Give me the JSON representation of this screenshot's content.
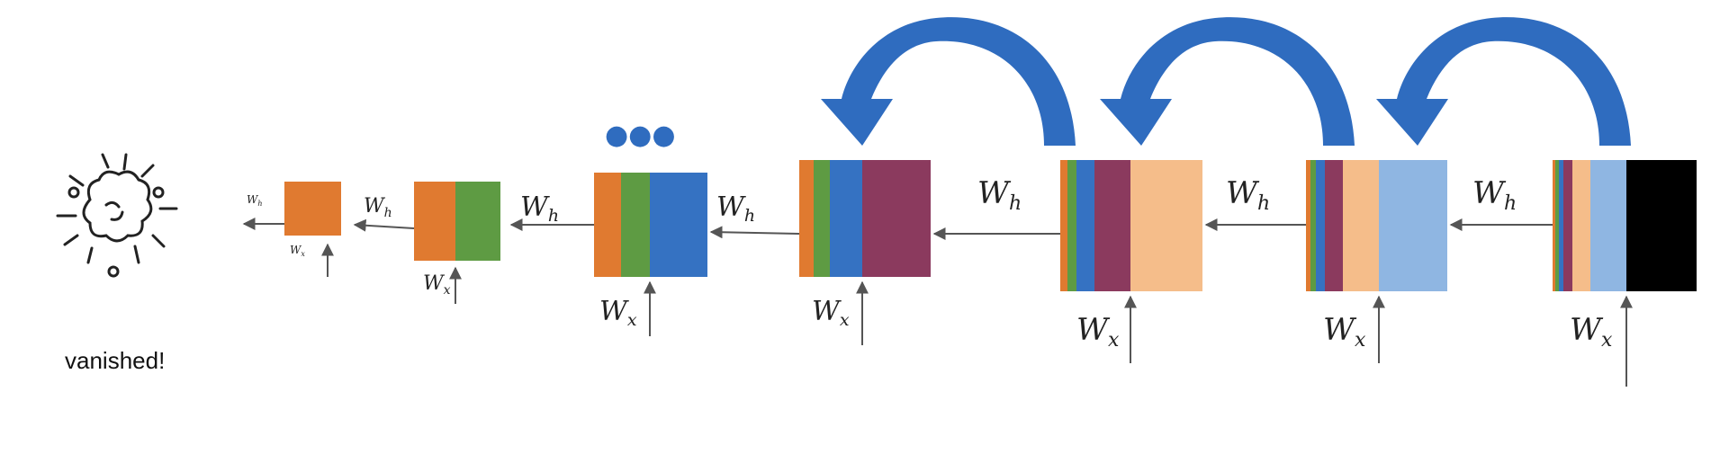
{
  "caption": "vanished!",
  "labels": {
    "wh_base": "W",
    "wh_sub": "h",
    "wx_base": "W",
    "wx_sub": "x"
  },
  "ellipsis": "●●●",
  "colors": {
    "orange": "#e07a30",
    "green": "#5e9b43",
    "blue": "#3572c2",
    "plum": "#8b3a5e",
    "peach": "#f5bd8a",
    "lightblue": "#8fb6e2",
    "black": "#000000",
    "arrow_blue": "#2f6cbf",
    "line": "#555555"
  },
  "icons": {
    "vanished": "explosion-icon",
    "recurrence": "curved-arrow-icon"
  }
}
